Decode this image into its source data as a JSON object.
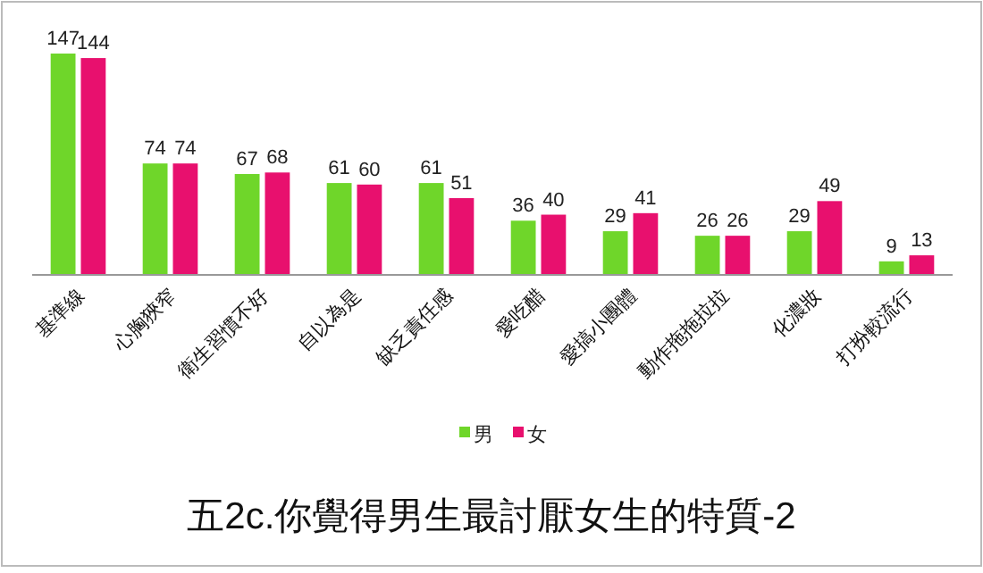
{
  "chart_data": {
    "type": "bar",
    "title": "五2c.你覺得男生最討厭女生的特質-2",
    "categories": [
      "基準線",
      "心胸狹窄",
      "衛生習慣不好",
      "自以為是",
      "缺乏責任感",
      "愛吃醋",
      "愛搞小團體",
      "動作拖拖拉拉",
      "化濃妝",
      "打扮較流行"
    ],
    "series": [
      {
        "name": "男",
        "color": "#6fd62a",
        "values": [
          147,
          74,
          67,
          61,
          61,
          36,
          29,
          26,
          29,
          9
        ]
      },
      {
        "name": "女",
        "color": "#e8106e",
        "values": [
          144,
          74,
          68,
          60,
          51,
          40,
          41,
          26,
          49,
          13
        ]
      }
    ],
    "data_labels": true,
    "legend": "bottom"
  }
}
